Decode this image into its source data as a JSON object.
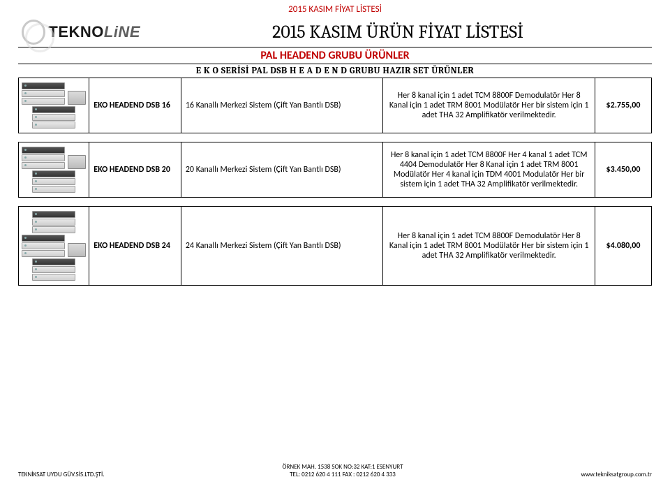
{
  "header": {
    "top_small_title": "2015 KASIM FİYAT LİSTESİ",
    "logo_tekno": "TEKNO",
    "logo_line": "LiNE",
    "main_title": "2015 KASIM ÜRÜN FİYAT LİSTESİ",
    "group_title": "PAL  HEADEND GRUBU  ÜRÜNLER",
    "series_title": "E K O SERİSİ PAL DSB H E A D E N D  GRUBU HAZIR SET ÜRÜNLER"
  },
  "products": [
    {
      "name": "EKO HEADEND DSB 16",
      "spec": "16 Kanallı Merkezi Sistem (Çift Yan Bantlı DSB)",
      "desc": "Her 8 kanal için 1 adet TCM 8800F Demodulatör Her 8 Kanal için 1 adet TRM 8001 Modülatör Her bir sistem için 1 adet THA 32 Amplifikatör verilmektedir.",
      "price": "$2.755,00",
      "racks": 2
    },
    {
      "name": "EKO HEADEND DSB 20",
      "spec": "20 Kanallı Merkezi Sistem (Çift Yan Bantlı DSB)",
      "desc": "Her 8 kanal için 1 adet TCM 8800F Her 4 kanal 1 adet TCM 4404 Demodulatör Her 8 Kanal için 1 adet TRM 8001 Modülatör Her 4 kanal için TDM 4001 Modulatör Her bir sistem için 1 adet THA 32 Amplifikatör verilmektedir.",
      "price": "$3.450,00",
      "racks": 2
    },
    {
      "name": "EKO HEADEND DSB 24",
      "spec": "24 Kanallı Merkezi Sistem (Çift Yan Bantlı DSB)",
      "desc": "Her 8 kanal için 1 adet TCM 8800F Demodulatör Her 8 Kanal için 1 adet TRM 8001 Modülatör Her bir sistem için 1 adet THA 32 Amplifikatör verilmektedir.",
      "price": "$4.080,00",
      "racks": 3
    }
  ],
  "footer": {
    "left": "TEKNİKSAT UYDU GÜV.SİS.LTD.ŞTİ.",
    "center_line1": "ÖRNEK MAH. 1538 SOK NO:32 KAT:1 ESENYURT",
    "center_line2": "TEL: 0212 620 4 111 FAX : 0212 620 4 333",
    "right": "www.tekniksatgroup.com.tr"
  },
  "colors": {
    "accent_red": "#c00000",
    "text_black": "#000000",
    "border": "#000000",
    "background": "#ffffff"
  }
}
